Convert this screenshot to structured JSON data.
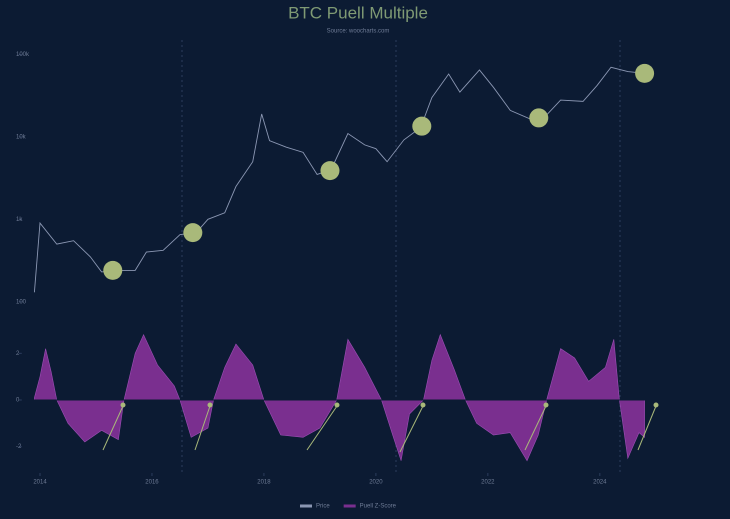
{
  "chart_data": [
    {
      "type": "line",
      "title": "BTC Puell Multiple",
      "subtitle": "Source: woocharts.com",
      "x": [
        2013.9,
        2014.0,
        2014.3,
        2014.6,
        2014.9,
        2015.1,
        2015.4,
        2015.7,
        2015.9,
        2016.2,
        2016.5,
        2016.8,
        2017.0,
        2017.3,
        2017.5,
        2017.8,
        2017.96,
        2018.1,
        2018.4,
        2018.7,
        2018.95,
        2019.2,
        2019.5,
        2019.8,
        2020.0,
        2020.2,
        2020.5,
        2020.8,
        2021.0,
        2021.3,
        2021.5,
        2021.85,
        2022.1,
        2022.4,
        2022.8,
        2023.0,
        2023.3,
        2023.7,
        2023.95,
        2024.2,
        2024.5,
        2024.8
      ],
      "xlim": [
        2013.8,
        2024.95
      ],
      "log_y": true,
      "ylim": [
        60,
        150000
      ],
      "yticks": [
        100,
        {
          "value": 1000,
          "label": "1k"
        },
        {
          "value": 10000,
          "label": "10k"
        },
        {
          "value": 100000,
          "label": "100k"
        }
      ],
      "series": [
        {
          "name": "Price",
          "color": "#8b97b3",
          "values": [
            130,
            900,
            500,
            550,
            350,
            230,
            240,
            240,
            400,
            420,
            650,
            700,
            1000,
            1200,
            2500,
            5000,
            19000,
            9000,
            7500,
            6500,
            3500,
            4000,
            11000,
            8000,
            7200,
            5000,
            9200,
            13000,
            30000,
            58000,
            35000,
            65000,
            40000,
            21000,
            16000,
            17000,
            28000,
            27000,
            42000,
            70000,
            62000,
            59000
          ]
        }
      ],
      "markers": {
        "x": [
          2015.3,
          2016.73,
          2019.18,
          2020.82,
          2022.91,
          2024.8
        ],
        "values": [
          240,
          690,
          3900,
          13500,
          17000,
          59000
        ],
        "color": "#a9b97a"
      }
    },
    {
      "type": "area",
      "x": [
        2013.9,
        2014.0,
        2014.1,
        2014.2,
        2014.3,
        2014.5,
        2014.8,
        2015.1,
        2015.4,
        2015.5,
        2015.7,
        2015.85,
        2016.1,
        2016.4,
        2016.5,
        2016.7,
        2017.0,
        2017.1,
        2017.3,
        2017.5,
        2017.8,
        2018.0,
        2018.3,
        2018.7,
        2019.0,
        2019.3,
        2019.5,
        2019.8,
        2020.1,
        2020.3,
        2020.45,
        2020.6,
        2020.85,
        2021.0,
        2021.15,
        2021.4,
        2021.6,
        2021.8,
        2022.1,
        2022.4,
        2022.7,
        2022.9,
        2023.05,
        2023.3,
        2023.55,
        2023.8,
        2024.1,
        2024.25,
        2024.35,
        2024.5,
        2024.7,
        2024.8
      ],
      "xlim": [
        2013.8,
        2024.95
      ],
      "xticks": [
        2014,
        2016,
        2018,
        2020,
        2022,
        2024
      ],
      "ylim": [
        -3,
        3
      ],
      "yticks": [
        -2,
        0,
        2
      ],
      "series": [
        {
          "name": "Puell Z-Score",
          "color": "#7a2f8f",
          "values": [
            0.1,
            1.0,
            2.2,
            1.2,
            0,
            -1.0,
            -1.8,
            -1.3,
            -1.7,
            0,
            2.0,
            2.8,
            1.5,
            0.6,
            0,
            -1.6,
            -1.2,
            0,
            1.4,
            2.4,
            1.5,
            0,
            -1.5,
            -1.6,
            -1.2,
            0,
            2.6,
            1.4,
            0,
            -1.5,
            -2.6,
            -0.6,
            0,
            1.7,
            2.8,
            1.3,
            0,
            -1.0,
            -1.5,
            -1.4,
            -2.6,
            -1.5,
            0,
            2.2,
            1.8,
            0.8,
            1.4,
            2.6,
            0,
            -2.5,
            -1.4,
            -1.6
          ]
        }
      ]
    }
  ]
}
